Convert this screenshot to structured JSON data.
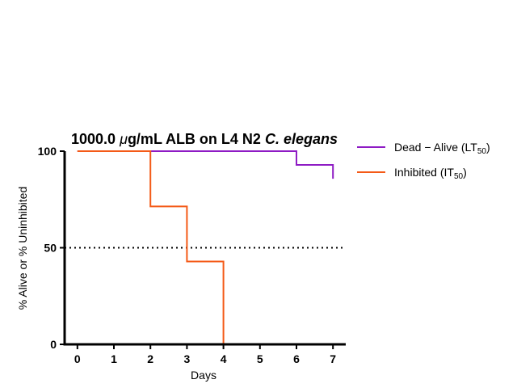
{
  "chart_data": {
    "type": "line",
    "step": true,
    "title_main": "1000.0 ",
    "title_mu": "μ",
    "title_rest": "g/mL ALB on L4 N2 ",
    "title_italic": "C. elegans",
    "xlabel": "Days",
    "ylabel": "% Alive or % Uninhibited",
    "xlim": [
      -0.35,
      7.35
    ],
    "ylim": [
      0,
      100
    ],
    "x_ticks": [
      "0",
      "1",
      "2",
      "3",
      "4",
      "5",
      "6",
      "7"
    ],
    "y_ticks": [
      "0",
      "50",
      "100"
    ],
    "reference_line": {
      "y": 50,
      "style": "dotted"
    },
    "series": [
      {
        "name_prefix": "Dead − Alive (LT",
        "name_sub": "50",
        "name_suffix": ")",
        "color": "#8e1bc4",
        "x": [
          0,
          1,
          2,
          3,
          4,
          5,
          6,
          7
        ],
        "y": [
          100,
          100,
          100,
          100,
          100,
          100,
          92.9,
          85.7
        ]
      },
      {
        "name_prefix": "Inhibited (IT",
        "name_sub": "50",
        "name_suffix": ")",
        "color": "#f45a17",
        "x": [
          0,
          1,
          2,
          3,
          4
        ],
        "y": [
          100,
          100,
          71.4,
          42.9,
          0
        ]
      }
    ],
    "legend_position": "right-top"
  }
}
